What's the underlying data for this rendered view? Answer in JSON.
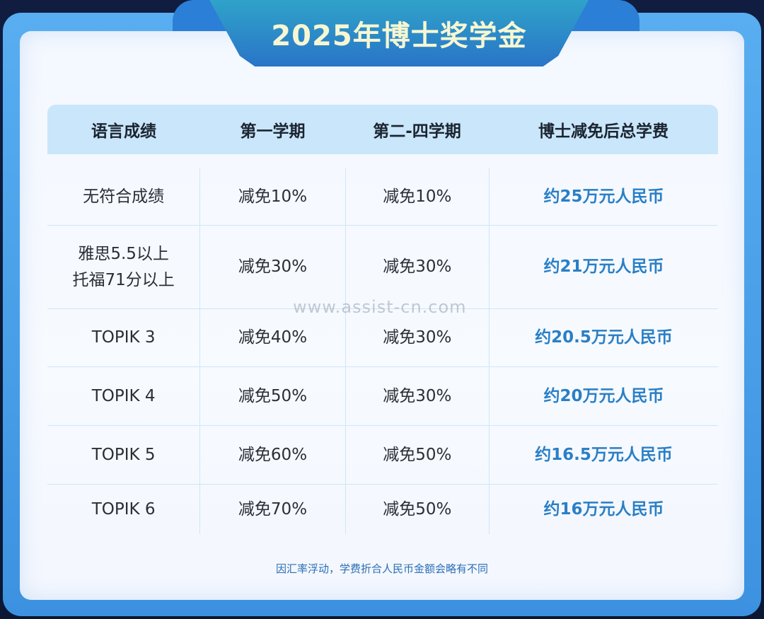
{
  "title": "2025年博士奖学金",
  "table": {
    "headers": [
      "语言成绩",
      "第一学期",
      "第二-四学期",
      "博士减免后总学费"
    ],
    "rows": [
      {
        "lang_line1": "无符合成绩",
        "lang_line2": "",
        "sem1": "减免10%",
        "sem2_4": "减免10%",
        "total": "约25万元人民币"
      },
      {
        "lang_line1": "雅思5.5以上",
        "lang_line2": "托福71分以上",
        "sem1": "减免30%",
        "sem2_4": "减免30%",
        "total": "约21万元人民币"
      },
      {
        "lang_line1": "TOPIK 3",
        "lang_line2": "",
        "sem1": "减免40%",
        "sem2_4": "减免30%",
        "total": "约20.5万元人民币"
      },
      {
        "lang_line1": "TOPIK 4",
        "lang_line2": "",
        "sem1": "减免50%",
        "sem2_4": "减免30%",
        "total": "约20万元人民币"
      },
      {
        "lang_line1": "TOPIK 5",
        "lang_line2": "",
        "sem1": "减免60%",
        "sem2_4": "减免50%",
        "total": "约16.5万元人民币"
      },
      {
        "lang_line1": "TOPIK 6",
        "lang_line2": "",
        "sem1": "减免70%",
        "sem2_4": "减免50%",
        "total": "约16万元人民币"
      }
    ]
  },
  "watermark": "www.assist-cn.com",
  "footnote": "因汇率浮动，学费折合人民币金额会略有不同",
  "colors": {
    "frame": "#4aa2ea",
    "header_bg": "#c9e6fb",
    "fee_text": "#2a7fc6",
    "title_text": "#f6f7d2"
  }
}
